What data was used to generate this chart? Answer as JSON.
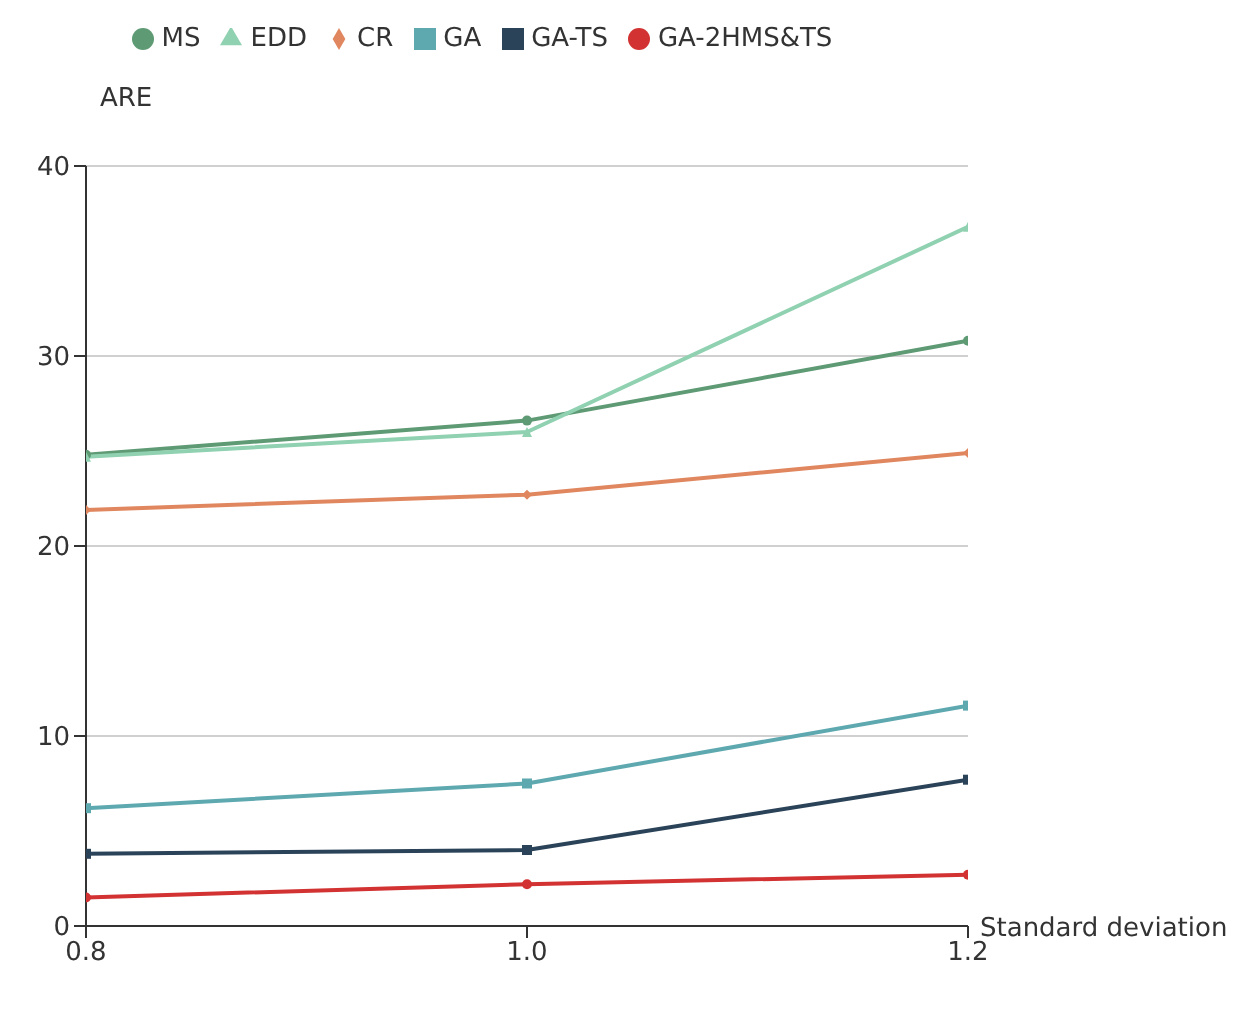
{
  "chart_data": {
    "type": "line",
    "xlabel": "Standard deviation",
    "ylabel": "ARE",
    "x": [
      0.8,
      1.0,
      1.2
    ],
    "series": [
      {
        "name": "MS",
        "color": "#5e9a74",
        "marker": "circle",
        "values": [
          24.8,
          26.6,
          30.8
        ]
      },
      {
        "name": "EDD",
        "color": "#8fd1b0",
        "marker": "triangle",
        "values": [
          24.7,
          26.0,
          36.8
        ]
      },
      {
        "name": "CR",
        "color": "#e0875f",
        "marker": "diamond",
        "values": [
          21.9,
          22.7,
          24.9
        ]
      },
      {
        "name": "GA",
        "color": "#5ea8b0",
        "marker": "square",
        "values": [
          6.2,
          7.5,
          11.6
        ]
      },
      {
        "name": "GA-TS",
        "color": "#2b4358",
        "marker": "square",
        "values": [
          3.8,
          4.0,
          7.7
        ]
      },
      {
        "name": "GA-2HMS&TS",
        "color": "#d23232",
        "marker": "circle",
        "values": [
          1.5,
          2.2,
          2.7
        ]
      }
    ],
    "xlim": [
      0.8,
      1.2
    ],
    "xticks": [
      0.8,
      {
        "value": 1.0,
        "label": "1.0"
      },
      1.2
    ],
    "ylim": [
      0,
      40
    ],
    "yticks": [
      0,
      10,
      20,
      30,
      40
    ],
    "grid": "y",
    "legend": "top"
  }
}
